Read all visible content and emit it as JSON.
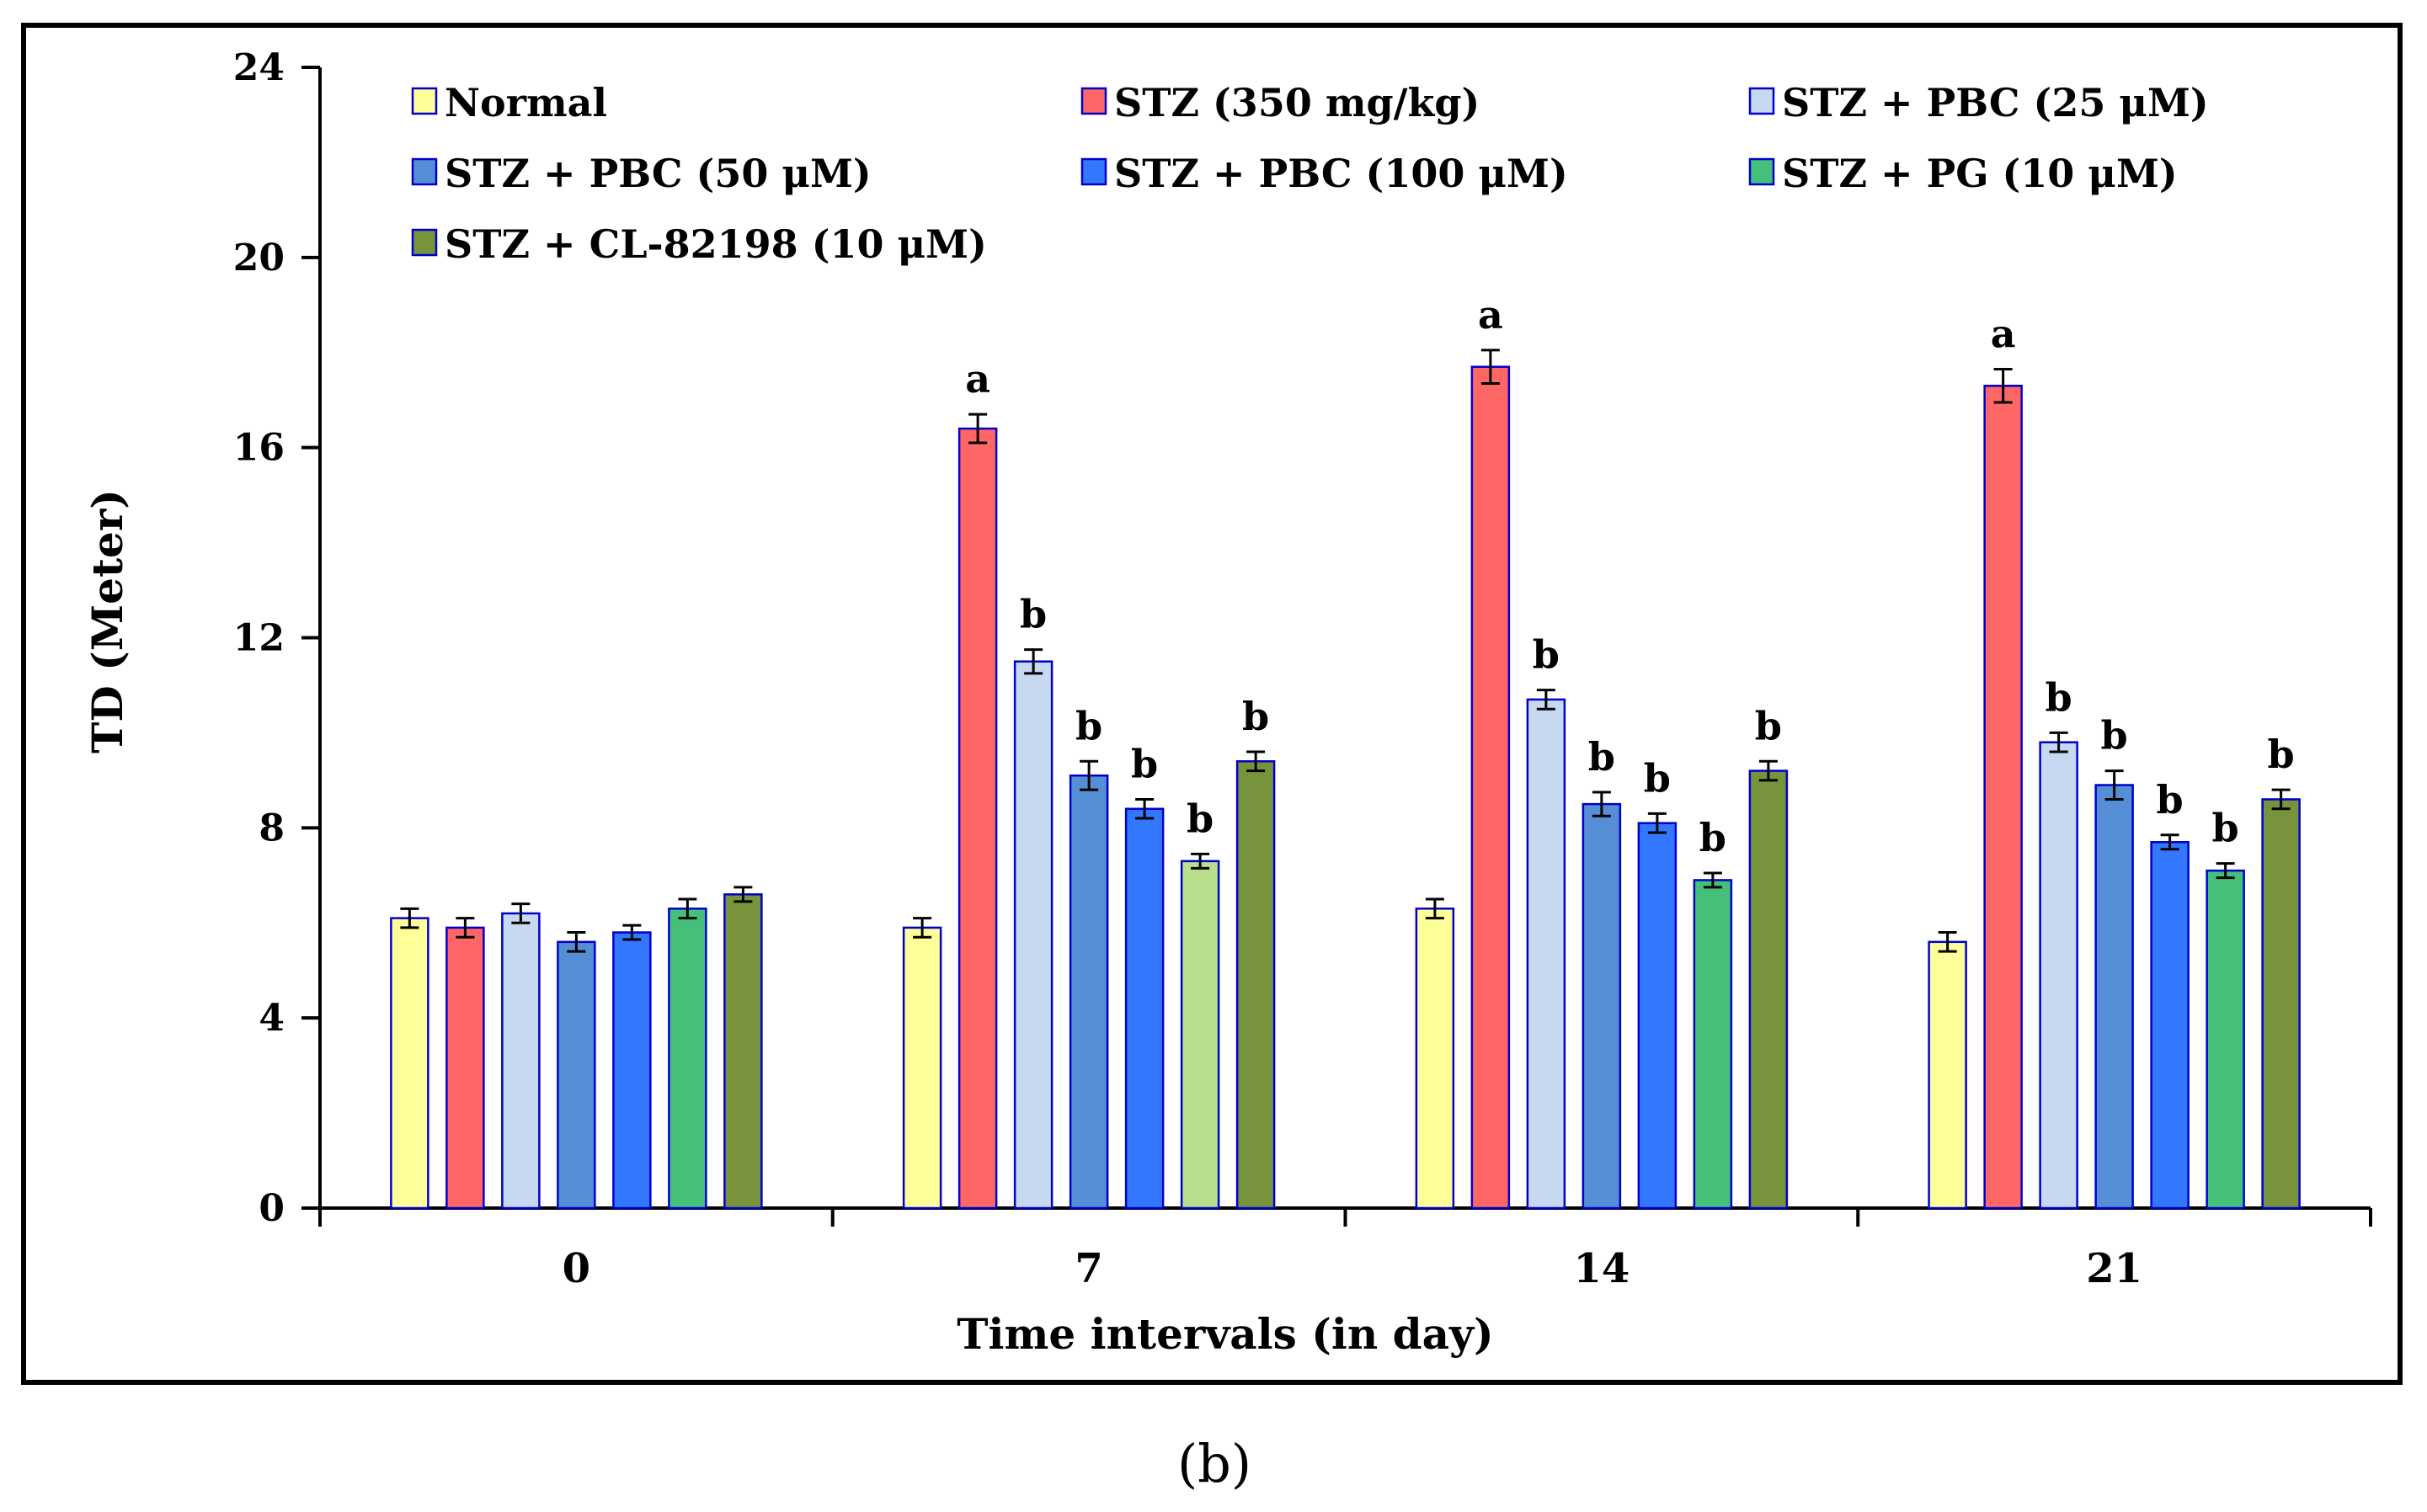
{
  "caption": "(b)",
  "chart_data": {
    "type": "bar",
    "title": "",
    "xlabel": "Time intervals (in day)",
    "ylabel": "TD (Meter)",
    "ylim": [
      0,
      24
    ],
    "yticks": [
      0,
      4,
      8,
      12,
      16,
      20,
      24
    ],
    "grid": false,
    "legend_position": "top",
    "categories": [
      "0",
      "7",
      "14",
      "21"
    ],
    "series": [
      {
        "name": "Normal",
        "color": "#ffff99",
        "values": [
          6.1,
          5.9,
          6.3,
          5.6
        ],
        "errors": [
          0.2,
          0.2,
          0.2,
          0.2
        ],
        "labels": [
          "",
          "",
          "",
          ""
        ]
      },
      {
        "name": "STZ (350 mg/kg)",
        "color": "#ff6666",
        "values": [
          5.9,
          16.4,
          17.7,
          17.3
        ],
        "errors": [
          0.2,
          0.3,
          0.35,
          0.35
        ],
        "labels": [
          "",
          "a",
          "a",
          "a"
        ]
      },
      {
        "name": "STZ + PBC (25 μM)",
        "color": "#c6d9f1",
        "values": [
          6.2,
          11.5,
          10.7,
          9.8
        ],
        "errors": [
          0.2,
          0.25,
          0.2,
          0.2
        ],
        "labels": [
          "",
          "b",
          "b",
          "b"
        ]
      },
      {
        "name": "STZ + PBC (50 μM)",
        "color": "#558ed5",
        "values": [
          5.6,
          9.1,
          8.5,
          8.9
        ],
        "errors": [
          0.2,
          0.3,
          0.25,
          0.3
        ],
        "labels": [
          "",
          "b",
          "b",
          "b"
        ]
      },
      {
        "name": "STZ + PBC (100 μM)",
        "color": "#3377ff",
        "values": [
          5.8,
          8.4,
          8.1,
          7.7
        ],
        "errors": [
          0.15,
          0.2,
          0.2,
          0.15
        ],
        "labels": [
          "",
          "b",
          "b",
          "b"
        ]
      },
      {
        "name": "STZ + PG (10 μM)",
        "color": "#44c07a",
        "values": [
          6.3,
          7.3,
          6.9,
          7.1
        ],
        "errors": [
          0.2,
          0.15,
          0.15,
          0.15
        ],
        "labels": [
          "",
          "b",
          "b",
          "b"
        ],
        "point_colors": [
          "#44c07a",
          "#b8e08c",
          "#44c07a",
          "#44c07a"
        ]
      },
      {
        "name": "STZ + CL-82198 (10 μM)",
        "color": "#77933c",
        "values": [
          6.6,
          9.4,
          9.2,
          8.6
        ],
        "errors": [
          0.15,
          0.2,
          0.2,
          0.2
        ],
        "labels": [
          "",
          "b",
          "b",
          "b"
        ]
      }
    ]
  }
}
